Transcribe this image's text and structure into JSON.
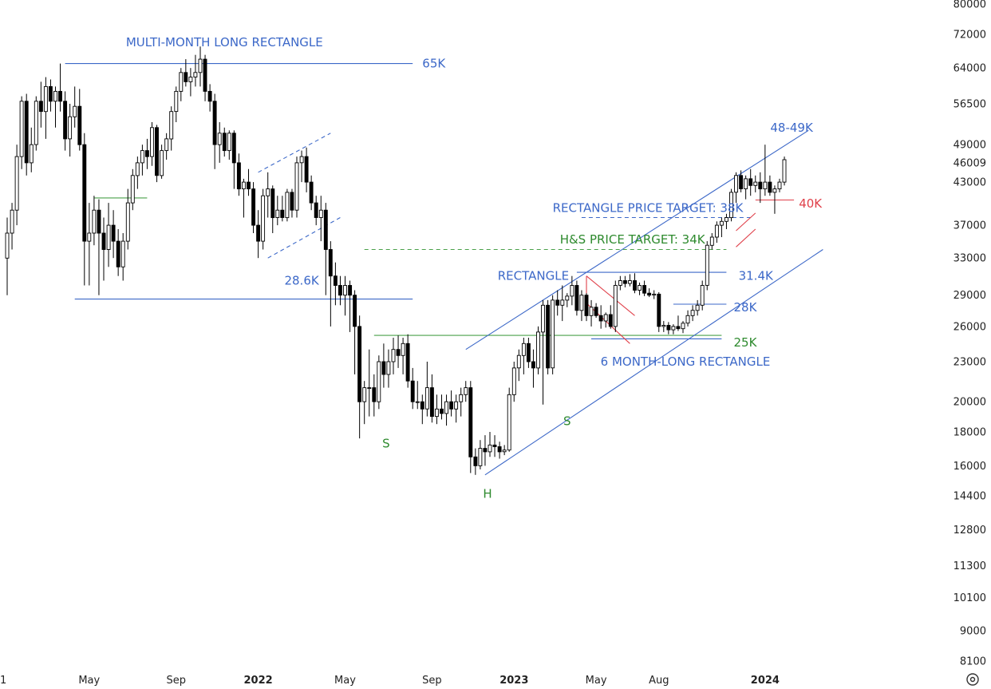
{
  "chart_data": {
    "type": "candlestick",
    "title": "",
    "y_scale": "log",
    "ylim": [
      8100,
      80000
    ],
    "y_ticks": [
      "80000",
      "72000",
      "64000",
      "56500",
      "49000",
      "46009",
      "43000",
      "37000",
      "33000",
      "29000",
      "26000",
      "23000",
      "20000",
      "18000",
      "16000",
      "14400",
      "12800",
      "11300",
      "10100",
      "9000",
      "8100"
    ],
    "x_ticks": [
      {
        "label": "1",
        "week": 0,
        "bold": false
      },
      {
        "label": "May",
        "week": 17,
        "bold": false
      },
      {
        "label": "Sep",
        "week": 35,
        "bold": false
      },
      {
        "label": "2022",
        "week": 52,
        "bold": true
      },
      {
        "label": "May",
        "week": 70,
        "bold": false
      },
      {
        "label": "Sep",
        "week": 88,
        "bold": false
      },
      {
        "label": "2023",
        "week": 105,
        "bold": true
      },
      {
        "label": "May",
        "week": 122,
        "bold": false
      },
      {
        "label": "Aug",
        "week": 135,
        "bold": false
      },
      {
        "label": "2024",
        "week": 157,
        "bold": true
      }
    ],
    "ohlc": [
      [
        33000,
        38000,
        29000,
        36000
      ],
      [
        36000,
        40000,
        34000,
        39000
      ],
      [
        39000,
        49000,
        37000,
        47000
      ],
      [
        47000,
        58000,
        45000,
        57000
      ],
      [
        57000,
        58500,
        44000,
        46000
      ],
      [
        46000,
        52000,
        44500,
        49000
      ],
      [
        49000,
        58000,
        48000,
        57000
      ],
      [
        57000,
        61000,
        52000,
        55000
      ],
      [
        55000,
        62000,
        50000,
        60000
      ],
      [
        60000,
        61500,
        55000,
        57000
      ],
      [
        57000,
        60000,
        52000,
        59000
      ],
      [
        59000,
        65000,
        55000,
        57000
      ],
      [
        57000,
        59000,
        48000,
        50000
      ],
      [
        50000,
        56500,
        47000,
        54000
      ],
      [
        54000,
        60000,
        52000,
        56000
      ],
      [
        56000,
        59500,
        48000,
        49000
      ],
      [
        49000,
        51000,
        30000,
        35000
      ],
      [
        35000,
        40000,
        30000,
        36000
      ],
      [
        36000,
        41000,
        34500,
        39000
      ],
      [
        39000,
        40500,
        29000,
        36000
      ],
      [
        36000,
        38000,
        30500,
        34000
      ],
      [
        34000,
        40000,
        32000,
        37000
      ],
      [
        37000,
        39000,
        33000,
        35000
      ],
      [
        35000,
        36500,
        31000,
        32000
      ],
      [
        32000,
        36000,
        30500,
        35000
      ],
      [
        35000,
        42000,
        34000,
        40000
      ],
      [
        40000,
        45000,
        39000,
        44000
      ],
      [
        44000,
        47000,
        42000,
        46000
      ],
      [
        46000,
        49000,
        44000,
        48000
      ],
      [
        48000,
        50000,
        45000,
        47000
      ],
      [
        47000,
        53000,
        45500,
        52000
      ],
      [
        52000,
        52500,
        43000,
        44000
      ],
      [
        44000,
        49000,
        43500,
        48000
      ],
      [
        48000,
        51000,
        46500,
        50000
      ],
      [
        50000,
        56000,
        48000,
        55000
      ],
      [
        55000,
        60000,
        53000,
        59000
      ],
      [
        59000,
        64000,
        57000,
        63000
      ],
      [
        63000,
        66000,
        60000,
        61000
      ],
      [
        61000,
        64000,
        58000,
        62000
      ],
      [
        62000,
        67000,
        60000,
        63000
      ],
      [
        63000,
        69000,
        60000,
        66000
      ],
      [
        66000,
        67000,
        57000,
        59000
      ],
      [
        59000,
        60500,
        55000,
        57000
      ],
      [
        57000,
        58500,
        45000,
        49000
      ],
      [
        49000,
        53000,
        46000,
        51000
      ],
      [
        51000,
        52000,
        47000,
        48000
      ],
      [
        48000,
        51500,
        46500,
        51000
      ],
      [
        51000,
        51500,
        42000,
        46000
      ],
      [
        46000,
        47500,
        41000,
        42000
      ],
      [
        42000,
        43500,
        38000,
        43000
      ],
      [
        43000,
        45000,
        41000,
        42000
      ],
      [
        42000,
        43000,
        36000,
        37000
      ],
      [
        37000,
        39000,
        33000,
        35000
      ],
      [
        35000,
        42000,
        34000,
        41000
      ],
      [
        41000,
        44500,
        38000,
        42000
      ],
      [
        42000,
        42500,
        36000,
        38000
      ],
      [
        38000,
        41000,
        37000,
        39000
      ],
      [
        39000,
        41000,
        37500,
        38000
      ],
      [
        38000,
        42000,
        37500,
        41500
      ],
      [
        41500,
        42000,
        38000,
        39000
      ],
      [
        39000,
        47000,
        38000,
        46000
      ],
      [
        46000,
        48000,
        43000,
        47000
      ],
      [
        47000,
        48500,
        41500,
        43000
      ],
      [
        43000,
        44000,
        39000,
        40000
      ],
      [
        40000,
        41000,
        37000,
        38000
      ],
      [
        38000,
        41000,
        35000,
        39000
      ],
      [
        39000,
        40000,
        29000,
        34000
      ],
      [
        34000,
        35000,
        26000,
        31000
      ],
      [
        31000,
        32500,
        28000,
        30000
      ],
      [
        30000,
        31000,
        28000,
        29000
      ],
      [
        29000,
        31000,
        27000,
        30000
      ],
      [
        30000,
        30500,
        25500,
        29000
      ],
      [
        29000,
        29500,
        22000,
        26000
      ],
      [
        26000,
        27000,
        17600,
        20000
      ],
      [
        20000,
        21500,
        18500,
        21000
      ],
      [
        21000,
        24000,
        19000,
        21000
      ],
      [
        21000,
        22000,
        19000,
        20000
      ],
      [
        20000,
        23500,
        19500,
        23000
      ],
      [
        23000,
        24500,
        21000,
        22000
      ],
      [
        22000,
        24000,
        21000,
        23000
      ],
      [
        23000,
        25000,
        22000,
        24000
      ],
      [
        24000,
        25200,
        22500,
        23500
      ],
      [
        23500,
        25000,
        22000,
        24500
      ],
      [
        24500,
        25300,
        21000,
        21500
      ],
      [
        21500,
        22500,
        19500,
        20000
      ],
      [
        20000,
        21500,
        19500,
        20000
      ],
      [
        20000,
        20500,
        18500,
        19500
      ],
      [
        19500,
        23000,
        19000,
        21000
      ],
      [
        21000,
        22000,
        18600,
        19000
      ],
      [
        19000,
        20500,
        18500,
        19500
      ],
      [
        19500,
        20500,
        18800,
        19200
      ],
      [
        19200,
        20500,
        18400,
        20000
      ],
      [
        20000,
        20800,
        19000,
        19500
      ],
      [
        19500,
        20500,
        18600,
        20000
      ],
      [
        20000,
        21000,
        19000,
        20500
      ],
      [
        20500,
        21500,
        20000,
        21000
      ],
      [
        21000,
        21500,
        15600,
        16500
      ],
      [
        16500,
        17000,
        15500,
        16000
      ],
      [
        16000,
        17500,
        15800,
        17000
      ],
      [
        17000,
        17800,
        16000,
        16800
      ],
      [
        16800,
        18000,
        16500,
        17200
      ],
      [
        17200,
        17800,
        16500,
        17100
      ],
      [
        17100,
        17400,
        16400,
        16800
      ],
      [
        16800,
        17200,
        16600,
        16900
      ],
      [
        16900,
        21000,
        16800,
        20500
      ],
      [
        20500,
        23000,
        20000,
        22500
      ],
      [
        22500,
        24000,
        21500,
        23500
      ],
      [
        23500,
        25000,
        22000,
        24500
      ],
      [
        24500,
        25000,
        22500,
        23000
      ],
      [
        23000,
        24000,
        21000,
        22500
      ],
      [
        22500,
        26000,
        22000,
        25500
      ],
      [
        25500,
        28500,
        19800,
        28000
      ],
      [
        28000,
        28500,
        22000,
        22500
      ],
      [
        22500,
        29000,
        22000,
        28500
      ],
      [
        28500,
        29500,
        27000,
        28000
      ],
      [
        28000,
        30000,
        26500,
        28500
      ],
      [
        28500,
        29200,
        27800,
        28900
      ],
      [
        28900,
        31000,
        28000,
        30000
      ],
      [
        30000,
        30500,
        27000,
        27500
      ],
      [
        27500,
        29500,
        26500,
        29000
      ],
      [
        29000,
        29200,
        26500,
        27000
      ],
      [
        27000,
        28500,
        26000,
        27800
      ],
      [
        27800,
        28200,
        26800,
        27000
      ],
      [
        27000,
        28000,
        25800,
        26500
      ],
      [
        26500,
        27300,
        25900,
        27100
      ],
      [
        27100,
        28000,
        25800,
        26000
      ],
      [
        26000,
        30500,
        25500,
        30000
      ],
      [
        30000,
        31000,
        29500,
        30500
      ],
      [
        30500,
        31000,
        29800,
        30200
      ],
      [
        30200,
        31200,
        29900,
        30500
      ],
      [
        30500,
        31300,
        29200,
        29500
      ],
      [
        29500,
        30300,
        29000,
        30000
      ],
      [
        30000,
        30500,
        28900,
        29200
      ],
      [
        29200,
        29700,
        28800,
        29000
      ],
      [
        29000,
        29500,
        28600,
        29100
      ],
      [
        29100,
        29300,
        25500,
        26000
      ],
      [
        26000,
        26500,
        25500,
        26100
      ],
      [
        26100,
        26400,
        25300,
        25700
      ],
      [
        25700,
        26200,
        25300,
        26000
      ],
      [
        26000,
        27000,
        25600,
        25800
      ],
      [
        25800,
        26500,
        25400,
        26300
      ],
      [
        26300,
        27500,
        26000,
        27000
      ],
      [
        27000,
        28000,
        26500,
        27500
      ],
      [
        27500,
        28500,
        27000,
        28000
      ],
      [
        28000,
        30500,
        27500,
        30000
      ],
      [
        30000,
        35000,
        29500,
        34500
      ],
      [
        34500,
        36000,
        34000,
        35500
      ],
      [
        35500,
        37500,
        34800,
        37000
      ],
      [
        37000,
        38000,
        35500,
        37500
      ],
      [
        37500,
        38500,
        36500,
        38000
      ],
      [
        38000,
        42000,
        37500,
        41500
      ],
      [
        41500,
        44500,
        40000,
        44000
      ],
      [
        44000,
        44800,
        41500,
        42000
      ],
      [
        42000,
        44000,
        40500,
        43500
      ],
      [
        43500,
        45000,
        41000,
        42500
      ],
      [
        42500,
        44000,
        41500,
        43000
      ],
      [
        43000,
        44500,
        40000,
        42000
      ],
      [
        42000,
        49000,
        41000,
        43000
      ],
      [
        43000,
        44000,
        41000,
        41500
      ],
      [
        41500,
        42500,
        38500,
        42000
      ],
      [
        42000,
        43500,
        41500,
        43000
      ],
      [
        43000,
        47000,
        42500,
        46500
      ]
    ],
    "lines": [
      {
        "name": "65k-resistance",
        "color": "#3c68c8",
        "dash": false,
        "w0": 12,
        "p0": 65000,
        "w1": 84,
        "p1": 65000
      },
      {
        "name": "28-6k-support",
        "color": "#3c68c8",
        "dash": false,
        "w0": 14,
        "p0": 28600,
        "w1": 84,
        "p1": 28600
      },
      {
        "name": "early-green-level",
        "color": "#4aa04a",
        "dash": false,
        "w0": 18,
        "p0": 40700,
        "w1": 29,
        "p1": 40700
      },
      {
        "name": "flag-upper-line",
        "color": "#3c68c8",
        "dash": true,
        "w0": 52,
        "p0": 44500,
        "w1": 67,
        "p1": 51000
      },
      {
        "name": "flag-lower-line",
        "color": "#3c68c8",
        "dash": true,
        "w0": 54,
        "p0": 33000,
        "w1": 69,
        "p1": 38000
      },
      {
        "name": "hs-neckline",
        "color": "#4aa04a",
        "dash": false,
        "w0": 76,
        "p0": 25200,
        "w1": 148,
        "p1": 25200
      },
      {
        "name": "channel-upper-line",
        "color": "#3c68c8",
        "dash": false,
        "w0": 95,
        "p0": 24000,
        "w1": 166,
        "p1": 51500
      },
      {
        "name": "channel-lower-line",
        "color": "#3c68c8",
        "dash": false,
        "w0": 99,
        "p0": 15500,
        "w1": 169,
        "p1": 34000
      },
      {
        "name": "rect-top-31-4k",
        "color": "#3c68c8",
        "dash": false,
        "w0": 118,
        "p0": 31400,
        "w1": 149,
        "p1": 31400
      },
      {
        "name": "rect-bottom-25k",
        "color": "#3c68c8",
        "dash": false,
        "w0": 121,
        "p0": 24900,
        "w1": 148,
        "p1": 24900
      },
      {
        "name": "28k-level",
        "color": "#3c68c8",
        "dash": false,
        "w0": 138,
        "p0": 28100,
        "w1": 149,
        "p1": 28100
      },
      {
        "name": "rectangle-target-38k",
        "color": "#3c68c8",
        "dash": true,
        "w0": 119,
        "p0": 38000,
        "w1": 154,
        "p1": 38000
      },
      {
        "name": "hs-target-34k",
        "color": "#4aa04a",
        "dash": true,
        "w0": 74,
        "p0": 34000,
        "w1": 149,
        "p1": 34000
      },
      {
        "name": "40k-level",
        "color": "#e0404a",
        "dash": false,
        "w0": 155,
        "p0": 40400,
        "w1": 163,
        "p1": 40400
      },
      {
        "name": "red-wedge-upper",
        "color": "#e0404a",
        "dash": false,
        "w0": 120,
        "p0": 31000,
        "w1": 130,
        "p1": 27000
      },
      {
        "name": "red-wedge-lower",
        "color": "#e0404a",
        "dash": false,
        "w0": 120,
        "p0": 28200,
        "w1": 129,
        "p1": 24500
      },
      {
        "name": "red-wedge-connector-top",
        "color": "#e0404a",
        "dash": false,
        "w0": 120,
        "p0": 31000,
        "w1": 120,
        "p1": 28200
      },
      {
        "name": "red-flag-upper",
        "color": "#e0404a",
        "dash": false,
        "w0": 151,
        "p0": 36300,
        "w1": 155,
        "p1": 38600
      },
      {
        "name": "red-flag-lower",
        "color": "#e0404a",
        "dash": false,
        "w0": 151,
        "p0": 34300,
        "w1": 155,
        "p1": 36500
      }
    ],
    "annotations": [
      {
        "text": "MULTI-MONTH LONG RECTANGLE",
        "color": "#3c68c8",
        "w": 45,
        "p": 70000,
        "anchor": "middle"
      },
      {
        "text": "65K",
        "color": "#3c68c8",
        "w": 86,
        "p": 65000,
        "anchor": "start"
      },
      {
        "text": "28.6K",
        "color": "#3c68c8",
        "w": 61,
        "p": 30500,
        "anchor": "middle"
      },
      {
        "text": "S",
        "color": "#2e8a2e",
        "w": 78.5,
        "p": 17300,
        "anchor": "middle"
      },
      {
        "text": "H",
        "color": "#2e8a2e",
        "w": 99.5,
        "p": 14500,
        "anchor": "middle"
      },
      {
        "text": "S",
        "color": "#2e8a2e",
        "w": 116,
        "p": 18700,
        "anchor": "middle"
      },
      {
        "text": "RECTANGLE",
        "color": "#3c68c8",
        "w": 109,
        "p": 31000,
        "anchor": "middle"
      },
      {
        "text": "RECTANGLE PRICE TARGET: 38K",
        "color": "#3c68c8",
        "w": 113,
        "p": 39300,
        "anchor": "start"
      },
      {
        "text": "H&S PRICE TARGET: 34K",
        "color": "#2e8a2e",
        "w": 114.5,
        "p": 35200,
        "anchor": "start"
      },
      {
        "text": "31.4K",
        "color": "#3c68c8",
        "w": 151.5,
        "p": 31000,
        "anchor": "start"
      },
      {
        "text": "28K",
        "color": "#3c68c8",
        "w": 150.5,
        "p": 27800,
        "anchor": "start"
      },
      {
        "text": "25K",
        "color": "#2e8a2e",
        "w": 150.5,
        "p": 24600,
        "anchor": "start"
      },
      {
        "text": "6 MONTH-LONG RECTANGLE",
        "color": "#3c68c8",
        "w": 140.5,
        "p": 23000,
        "anchor": "middle"
      },
      {
        "text": "48-49K",
        "color": "#3c68c8",
        "w": 162.5,
        "p": 52000,
        "anchor": "middle"
      },
      {
        "text": "40K",
        "color": "#e0404a",
        "w": 164,
        "p": 39900,
        "anchor": "start"
      }
    ],
    "colors": {
      "up": "#ffffff",
      "down": "#000000",
      "wick": "#000000",
      "axis_text": "#222222"
    }
  }
}
